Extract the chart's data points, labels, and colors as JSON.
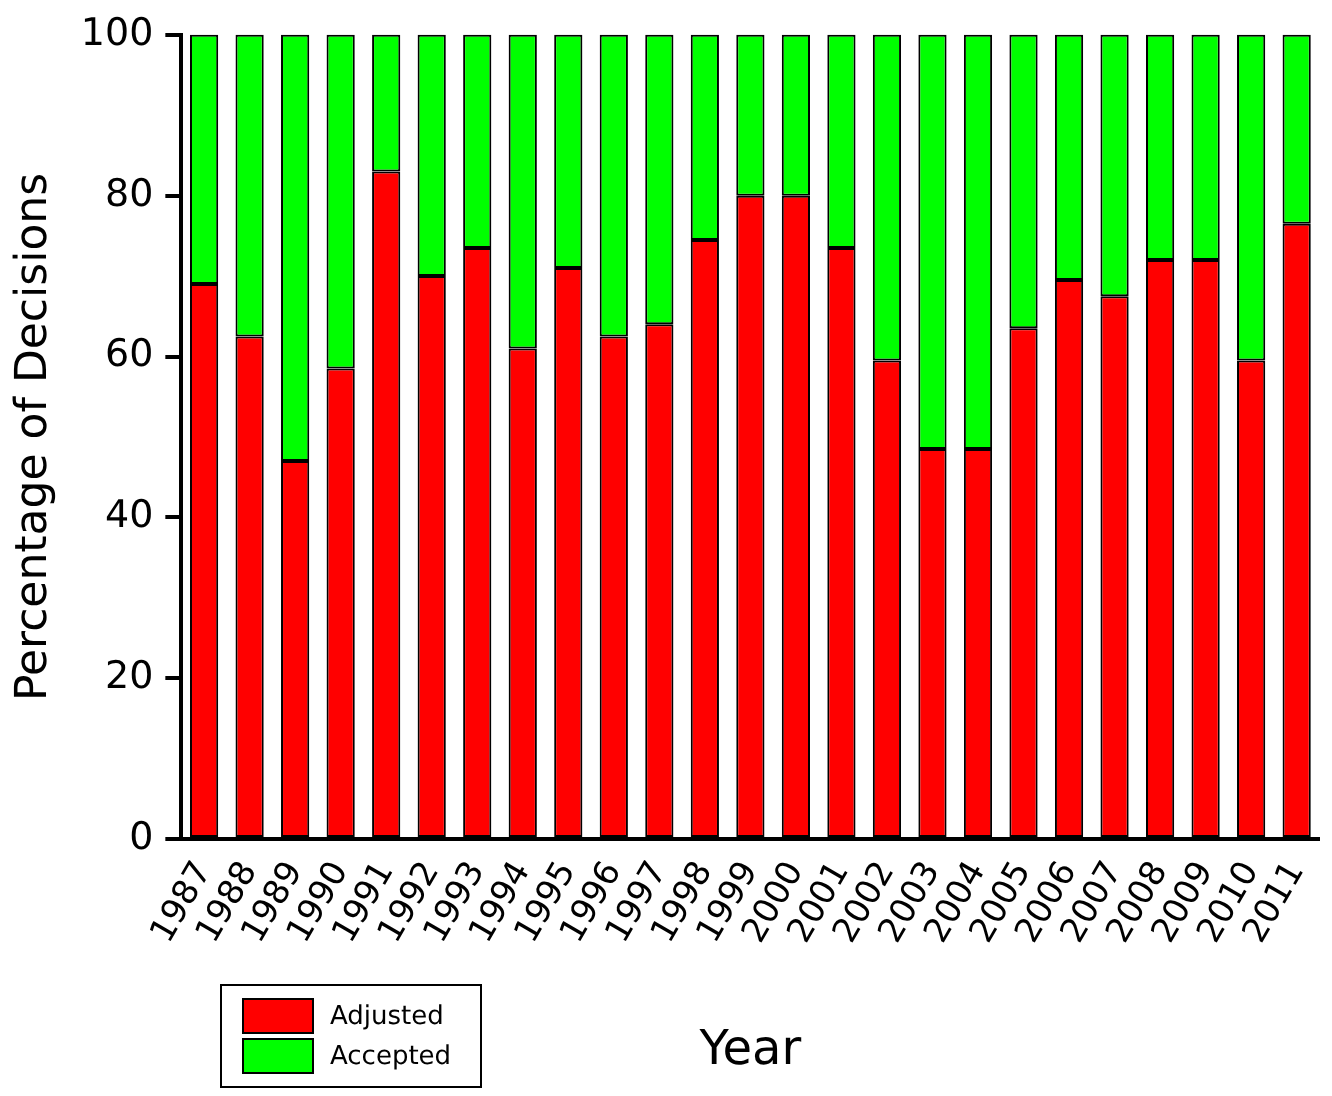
{
  "chart_data": {
    "type": "bar",
    "stacked": true,
    "xlabel": "Year",
    "ylabel": "Percentage of Decisions",
    "categories": [
      "1987",
      "1988",
      "1989",
      "1990",
      "1991",
      "1992",
      "1993",
      "1994",
      "1995",
      "1996",
      "1997",
      "1998",
      "1999",
      "2000",
      "2001",
      "2002",
      "2003",
      "2004",
      "2005",
      "2006",
      "2007",
      "2008",
      "2009",
      "2010",
      "2011"
    ],
    "series": [
      {
        "name": "Adjusted",
        "color": "#ff0000",
        "values": [
          69,
          62.5,
          47,
          58.5,
          83,
          70,
          73.5,
          61,
          71,
          62.5,
          64,
          74.5,
          80,
          80,
          73.5,
          59.5,
          48.5,
          48.5,
          63.5,
          69.5,
          67.5,
          72,
          72,
          59.5,
          76.5
        ]
      },
      {
        "name": "Accepted",
        "color": "#00ff00",
        "values": [
          31,
          37.5,
          53,
          41.5,
          17,
          30,
          26.5,
          39,
          29,
          37.5,
          36,
          25.5,
          20,
          20,
          26.5,
          40.5,
          51.5,
          51.5,
          36.5,
          30.5,
          32.5,
          28,
          28,
          40.5,
          23.5
        ]
      }
    ],
    "ylim": [
      0,
      100
    ],
    "yticks": [
      0,
      20,
      40,
      60,
      80,
      100
    ],
    "grid": false,
    "legend": "bottom left"
  }
}
